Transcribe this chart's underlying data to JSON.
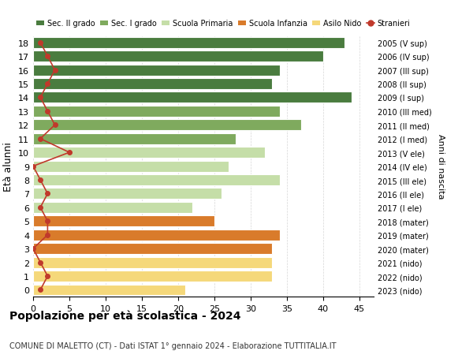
{
  "ages": [
    0,
    1,
    2,
    3,
    4,
    5,
    6,
    7,
    8,
    9,
    10,
    11,
    12,
    13,
    14,
    15,
    16,
    17,
    18
  ],
  "bar_values": [
    21,
    33,
    33,
    33,
    34,
    25,
    22,
    26,
    34,
    27,
    32,
    28,
    37,
    34,
    44,
    33,
    34,
    40,
    43
  ],
  "bar_colors": [
    "#f5d87a",
    "#f5d87a",
    "#f5d87a",
    "#d97b2b",
    "#d97b2b",
    "#d97b2b",
    "#c5dea8",
    "#c5dea8",
    "#c5dea8",
    "#c5dea8",
    "#c5dea8",
    "#7faa5e",
    "#7faa5e",
    "#7faa5e",
    "#4a7c3f",
    "#4a7c3f",
    "#4a7c3f",
    "#4a7c3f",
    "#4a7c3f"
  ],
  "stranieri_x": [
    1,
    2,
    1,
    0,
    2,
    2,
    1,
    2,
    1,
    0,
    5,
    1,
    3,
    2,
    1,
    2,
    3,
    2,
    1
  ],
  "right_labels": [
    "2023 (nido)",
    "2022 (nido)",
    "2021 (nido)",
    "2020 (mater)",
    "2019 (mater)",
    "2018 (mater)",
    "2017 (I ele)",
    "2016 (II ele)",
    "2015 (III ele)",
    "2014 (IV ele)",
    "2013 (V ele)",
    "2012 (I med)",
    "2011 (II med)",
    "2010 (III med)",
    "2009 (I sup)",
    "2008 (II sup)",
    "2007 (III sup)",
    "2006 (IV sup)",
    "2005 (V sup)"
  ],
  "legend_labels": [
    "Sec. II grado",
    "Sec. I grado",
    "Scuola Primaria",
    "Scuola Infanzia",
    "Asilo Nido",
    "Stranieri"
  ],
  "legend_colors": [
    "#4a7c3f",
    "#7faa5e",
    "#c5dea8",
    "#d97b2b",
    "#f5d87a",
    "#c0392b"
  ],
  "ylabel": "Età alunni",
  "right_ylabel": "Anni di nascita",
  "title": "Popolazione per età scolastica - 2024",
  "subtitle": "COMUNE DI MALETTO (CT) - Dati ISTAT 1° gennaio 2024 - Elaborazione TUTTITALIA.IT",
  "xlim": [
    0,
    47
  ],
  "ylim": [
    -0.5,
    18.5
  ],
  "xticks": [
    0,
    5,
    10,
    15,
    20,
    25,
    30,
    35,
    40,
    45
  ],
  "bg_color": "#ffffff",
  "stranieri_color": "#c0392b",
  "grid_color": "#cccccc"
}
